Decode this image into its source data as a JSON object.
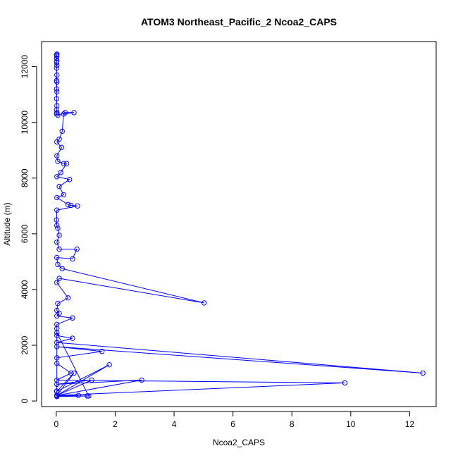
{
  "chart_data": {
    "type": "line",
    "title": "ATOM3 Northeast_Pacific_2 Ncoa2_CAPS",
    "xlabel": "Ncoa2_CAPS",
    "ylabel": "Altitude (m)",
    "xlim": [
      -0.5,
      12.9
    ],
    "ylim": [
      -200,
      12900
    ],
    "xticks": [
      0,
      2,
      4,
      6,
      8,
      10,
      12
    ],
    "xtick_labels": [
      "0",
      "2",
      "4",
      "6",
      "8",
      "10",
      "12"
    ],
    "yticks": [
      0,
      2000,
      4000,
      6000,
      8000,
      10000,
      12000
    ],
    "ytick_labels": [
      "0",
      "2000",
      "4000",
      "6000",
      "8000",
      "10000",
      "12000"
    ],
    "grid": false,
    "color": "#0000ff",
    "series": [
      {
        "name": "",
        "marker": "open-circle",
        "points": [
          [
            0.02,
            12450
          ],
          [
            0.01,
            12420
          ],
          [
            0.02,
            12380
          ],
          [
            0.01,
            12300
          ],
          [
            0.02,
            12200
          ],
          [
            0.01,
            12150
          ],
          [
            0.02,
            12050
          ],
          [
            0.01,
            11950
          ],
          [
            0.02,
            11700
          ],
          [
            0.01,
            11500
          ],
          [
            0.02,
            11450
          ],
          [
            0.01,
            11200
          ],
          [
            0.02,
            11100
          ],
          [
            0.01,
            10850
          ],
          [
            0.02,
            10600
          ],
          [
            0.01,
            10450
          ],
          [
            0.02,
            10350
          ],
          [
            0.01,
            10300
          ],
          [
            0.05,
            10250
          ],
          [
            0.3,
            10350
          ],
          [
            0.6,
            10350
          ],
          [
            0.25,
            10300
          ],
          [
            0.2,
            9680
          ],
          [
            0.1,
            9400
          ],
          [
            0.02,
            9300
          ],
          [
            0.18,
            9100
          ],
          [
            0.02,
            8800
          ],
          [
            0.05,
            8600
          ],
          [
            0.25,
            8520
          ],
          [
            0.35,
            8520
          ],
          [
            0.15,
            8200
          ],
          [
            0.02,
            8050
          ],
          [
            0.45,
            7950
          ],
          [
            0.1,
            7700
          ],
          [
            0.25,
            7400
          ],
          [
            0.02,
            7300
          ],
          [
            0.4,
            7050
          ],
          [
            0.5,
            7020
          ],
          [
            0.72,
            7000
          ],
          [
            0.02,
            6850
          ],
          [
            0.01,
            6500
          ],
          [
            0.02,
            6300
          ],
          [
            0.05,
            6200
          ],
          [
            0.1,
            5950
          ],
          [
            0.02,
            5700
          ],
          [
            0.1,
            5450
          ],
          [
            0.7,
            5450
          ],
          [
            0.55,
            5100
          ],
          [
            0.02,
            5150
          ],
          [
            0.05,
            4900
          ],
          [
            0.2,
            4750
          ],
          [
            5.02,
            3520
          ],
          [
            0.1,
            4400
          ],
          [
            0.02,
            4250
          ],
          [
            0.4,
            3700
          ],
          [
            0.05,
            3500
          ],
          [
            0.02,
            3250
          ],
          [
            0.1,
            3150
          ],
          [
            0.02,
            3050
          ],
          [
            0.55,
            2980
          ],
          [
            0.02,
            2750
          ],
          [
            0.02,
            2600
          ],
          [
            0.02,
            2350
          ],
          [
            0.55,
            2250
          ],
          [
            0.02,
            2100
          ],
          [
            12.45,
            1000
          ],
          [
            0.02,
            1950
          ],
          [
            1.55,
            1780
          ],
          [
            0.02,
            1550
          ],
          [
            0.02,
            1350
          ],
          [
            0.5,
            1000
          ],
          [
            0.02,
            750
          ],
          [
            9.8,
            650
          ],
          [
            0.02,
            200
          ],
          [
            0.6,
            1000
          ],
          [
            0.02,
            350
          ],
          [
            1.8,
            1300
          ],
          [
            0.02,
            200
          ],
          [
            1.2,
            750
          ],
          [
            0.02,
            600
          ],
          [
            2.9,
            750
          ],
          [
            0.02,
            200
          ],
          [
            0.75,
            200
          ],
          [
            0.02,
            180
          ],
          [
            1.1,
            180
          ],
          [
            0.02,
            2450
          ],
          [
            0.02,
            200
          ],
          [
            1.05,
            180
          ],
          [
            0.02,
            160
          ],
          [
            0.01,
            350
          ]
        ]
      }
    ]
  }
}
